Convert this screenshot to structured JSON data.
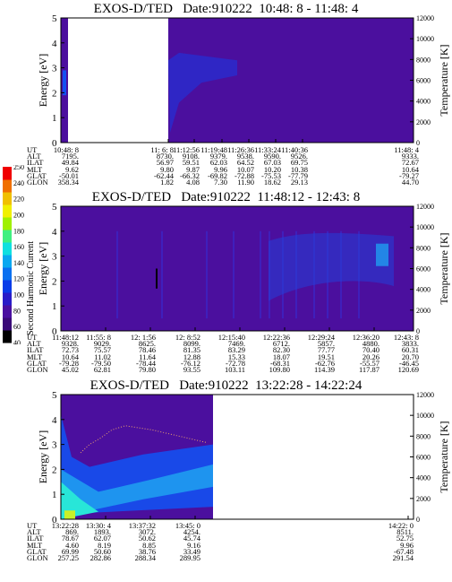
{
  "chart_data": [
    {
      "type": "heatmap",
      "title": "EXOS-D/TED   Date:910222  10:48: 8 - 11:48: 4",
      "ylabel": "Energy [eV]",
      "y2label": "Temperature [K]",
      "ylim": [
        0,
        5
      ],
      "y2lim": [
        0,
        12000
      ],
      "yticks": [
        "0",
        "1",
        "2",
        "3",
        "4",
        "5"
      ],
      "y2ticks": [
        "0",
        "2000",
        "4000",
        "6000",
        "8000",
        "10000",
        "12000"
      ],
      "row_labels": [
        "UT",
        "ALT",
        "ILAT",
        "MLT",
        "GLAT",
        "GLON"
      ],
      "columns": [
        [
          "10:48: 8",
          "7195.",
          "49.84",
          "9.62",
          "-50.01",
          "358.34"
        ],
        [
          "11: 6: 8",
          "8730.",
          "56.97",
          "9.80",
          "-62.44",
          "1.82"
        ],
        [
          "11:12:56",
          "9108.",
          "59.51",
          "9.87",
          "-66.32",
          "4.08"
        ],
        [
          "11:19:48",
          "9379.",
          "62.03",
          "9.96",
          "-69.82",
          "7.30"
        ],
        [
          "11:26:36",
          "9538.",
          "64.52",
          "10.07",
          "-72.88",
          "11.90"
        ],
        [
          "11:33:24",
          "9590.",
          "67.03",
          "10.20",
          "-75.53",
          "18.62"
        ],
        [
          "11:40:36",
          "9526.",
          "69.75",
          "10.38",
          "-77.79",
          "29.13"
        ],
        [
          "11:48: 4",
          "9333.",
          "72.67",
          "10.64",
          "-79.27",
          "44.70"
        ]
      ]
    },
    {
      "type": "heatmap",
      "title": "EXOS-D/TED   Date:910222  11:48:12 - 12:43: 8",
      "ylabel": "Energy [eV]",
      "y2label": "Temperature [K]",
      "ylim": [
        0,
        5
      ],
      "y2lim": [
        0,
        12000
      ],
      "yticks": [
        "0",
        "1",
        "2",
        "3",
        "4",
        "5"
      ],
      "y2ticks": [
        "0",
        "2000",
        "4000",
        "6000",
        "8000",
        "10000",
        "12000"
      ],
      "row_labels": [
        "UT",
        "ALT",
        "ILAT",
        "MLT",
        "GLAT",
        "GLON"
      ],
      "columns": [
        [
          "11:48:12",
          "9328.",
          "72.73",
          "10.64",
          "-79.28",
          "45.02"
        ],
        [
          "11:55: 8",
          "9029.",
          "75.57",
          "11.02",
          "-79.50",
          "62.81"
        ],
        [
          "12: 1:56",
          "8625.",
          "78.46",
          "11.64",
          "-78.44",
          "79.80"
        ],
        [
          "12: 8:52",
          "8099.",
          "81.35",
          "12.88",
          "-76.12",
          "93.55"
        ],
        [
          "12:15:40",
          "7469.",
          "83.29",
          "15.33",
          "-72.78",
          "103.11"
        ],
        [
          "12:22:36",
          "6712.",
          "82.30",
          "18.07",
          "-68.31",
          "109.80"
        ],
        [
          "12:29:24",
          "5857.",
          "77.77",
          "19.51",
          "-62.76",
          "114.39"
        ],
        [
          "12:36:20",
          "4880.",
          "70.40",
          "20.26",
          "-55.57",
          "117.87"
        ],
        [
          "12:43: 8",
          "3833.",
          "60.31",
          "20.70",
          "-46.45",
          "120.69"
        ]
      ]
    },
    {
      "type": "heatmap",
      "title": "EXOS-D/TED   Date:910222  13:22:28 - 14:22:24",
      "ylabel": "Energy [eV]",
      "y2label": "Temperature [K]",
      "ylim": [
        0,
        5
      ],
      "y2lim": [
        0,
        12000
      ],
      "yticks": [
        "0",
        "1",
        "2",
        "3",
        "4",
        "5"
      ],
      "y2ticks": [
        "0",
        "2000",
        "4000",
        "6000",
        "8000",
        "10000",
        "12000"
      ],
      "row_labels": [
        "UT",
        "ALT",
        "ILAT",
        "MLT",
        "GLAT",
        "GLON"
      ],
      "columns": [
        [
          "13:22:28",
          "869.",
          "78.67",
          "4.60",
          "69.99",
          "257.25"
        ],
        [
          "13:30: 4",
          "1893.",
          "62.07",
          "8.19",
          "50.60",
          "282.86"
        ],
        [
          "13:37:32",
          "3072.",
          "50.62",
          "8.85",
          "38.76",
          "288.34"
        ],
        [
          "13:45: 0",
          "4254.",
          "45.74",
          "9.16",
          "33.49",
          "289.95"
        ],
        [
          "14:22: 0",
          "8511.",
          "52.75",
          "9.96",
          "-67.48",
          "291.54"
        ]
      ]
    }
  ],
  "colorbar": {
    "label": "Second Harmonic Current",
    "ticks": [
      "40",
      "60",
      "80",
      "100",
      "120",
      "140",
      "160",
      "180",
      "200",
      "220",
      "240",
      "250"
    ],
    "colors": [
      "#000000",
      "#3a0a78",
      "#4a10a0",
      "#2a1cc8",
      "#0a3ce8",
      "#0a70f0",
      "#0aa8f0",
      "#10e0e0",
      "#40f080",
      "#a0f000",
      "#f0f000",
      "#f0c000",
      "#f07000",
      "#f00000"
    ]
  },
  "colors": {
    "background_purple": "#4b0f9e",
    "band_blue": "#1450f0",
    "band_light": "#1f9cf0",
    "cyan": "#28e6d8",
    "yellow_green": "#c8f028"
  }
}
